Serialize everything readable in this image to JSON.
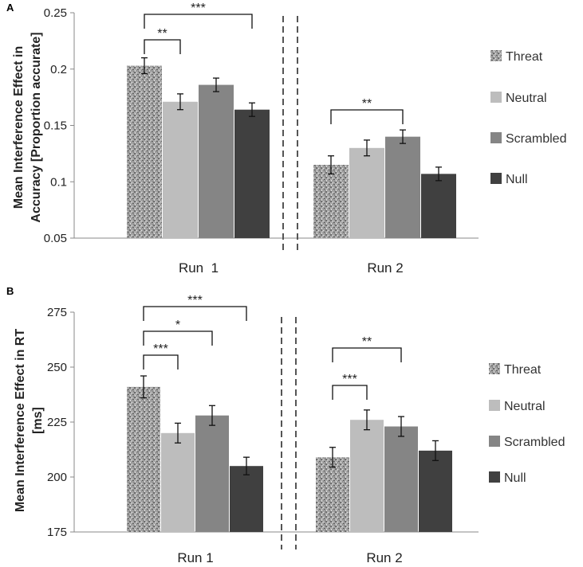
{
  "chart_data": [
    {
      "panel": "A",
      "type": "bar",
      "ylabel_lines": [
        "Mean Interference Effect in",
        "Accuracy [Proportion accurate]"
      ],
      "ylim": [
        0.05,
        0.25
      ],
      "yticks": [
        0.05,
        0.1,
        0.15,
        0.2,
        0.25
      ],
      "ytick_labels": [
        "0.05",
        "0.1",
        "0.15",
        "0.2",
        "0.25"
      ],
      "categories": [
        "Run  1",
        "Run 2"
      ],
      "series": [
        {
          "name": "Threat",
          "values": [
            0.203,
            0.115
          ],
          "errors": [
            0.007,
            0.008
          ]
        },
        {
          "name": "Neutral",
          "values": [
            0.171,
            0.13
          ],
          "errors": [
            0.007,
            0.007
          ]
        },
        {
          "name": "Scrambled",
          "values": [
            0.186,
            0.14
          ],
          "errors": [
            0.006,
            0.006
          ]
        },
        {
          "name": "Null",
          "values": [
            0.164,
            0.107
          ],
          "errors": [
            0.006,
            0.006
          ]
        }
      ],
      "significance": [
        {
          "group": 0,
          "from": 0,
          "to": 1,
          "label": "**"
        },
        {
          "group": 0,
          "from": 0,
          "to": 3,
          "label": "***"
        },
        {
          "group": 1,
          "from": 0,
          "to": 2,
          "label": "**"
        }
      ]
    },
    {
      "panel": "B",
      "type": "bar",
      "ylabel_lines": [
        "Mean Interference Effect in RT",
        "[ms]"
      ],
      "ylim": [
        175,
        275
      ],
      "yticks": [
        175,
        200,
        225,
        250,
        275
      ],
      "ytick_labels": [
        "175",
        "200",
        "225",
        "250",
        "275"
      ],
      "categories": [
        "Run 1",
        "Run 2"
      ],
      "series": [
        {
          "name": "Threat",
          "values": [
            241,
            209
          ],
          "errors": [
            5,
            4.5
          ]
        },
        {
          "name": "Neutral",
          "values": [
            220,
            226
          ],
          "errors": [
            4.5,
            4.5
          ]
        },
        {
          "name": "Scrambled",
          "values": [
            228,
            223
          ],
          "errors": [
            4.5,
            4.5
          ]
        },
        {
          "name": "Null",
          "values": [
            205,
            212
          ],
          "errors": [
            4,
            4.5
          ]
        }
      ],
      "significance": [
        {
          "group": 0,
          "from": 0,
          "to": 1,
          "label": "***"
        },
        {
          "group": 0,
          "from": 0,
          "to": 2,
          "label": "*"
        },
        {
          "group": 0,
          "from": 0,
          "to": 3,
          "label": "***"
        },
        {
          "group": 1,
          "from": 0,
          "to": 1,
          "label": "***"
        },
        {
          "group": 1,
          "from": 0,
          "to": 2,
          "label": "**"
        }
      ]
    }
  ],
  "colors": {
    "threat": "#9a9a9a",
    "neutral": "#bdbdbd",
    "scrambled": "#858585",
    "null": "#404040",
    "axis": "#888888",
    "text": "#222222"
  }
}
